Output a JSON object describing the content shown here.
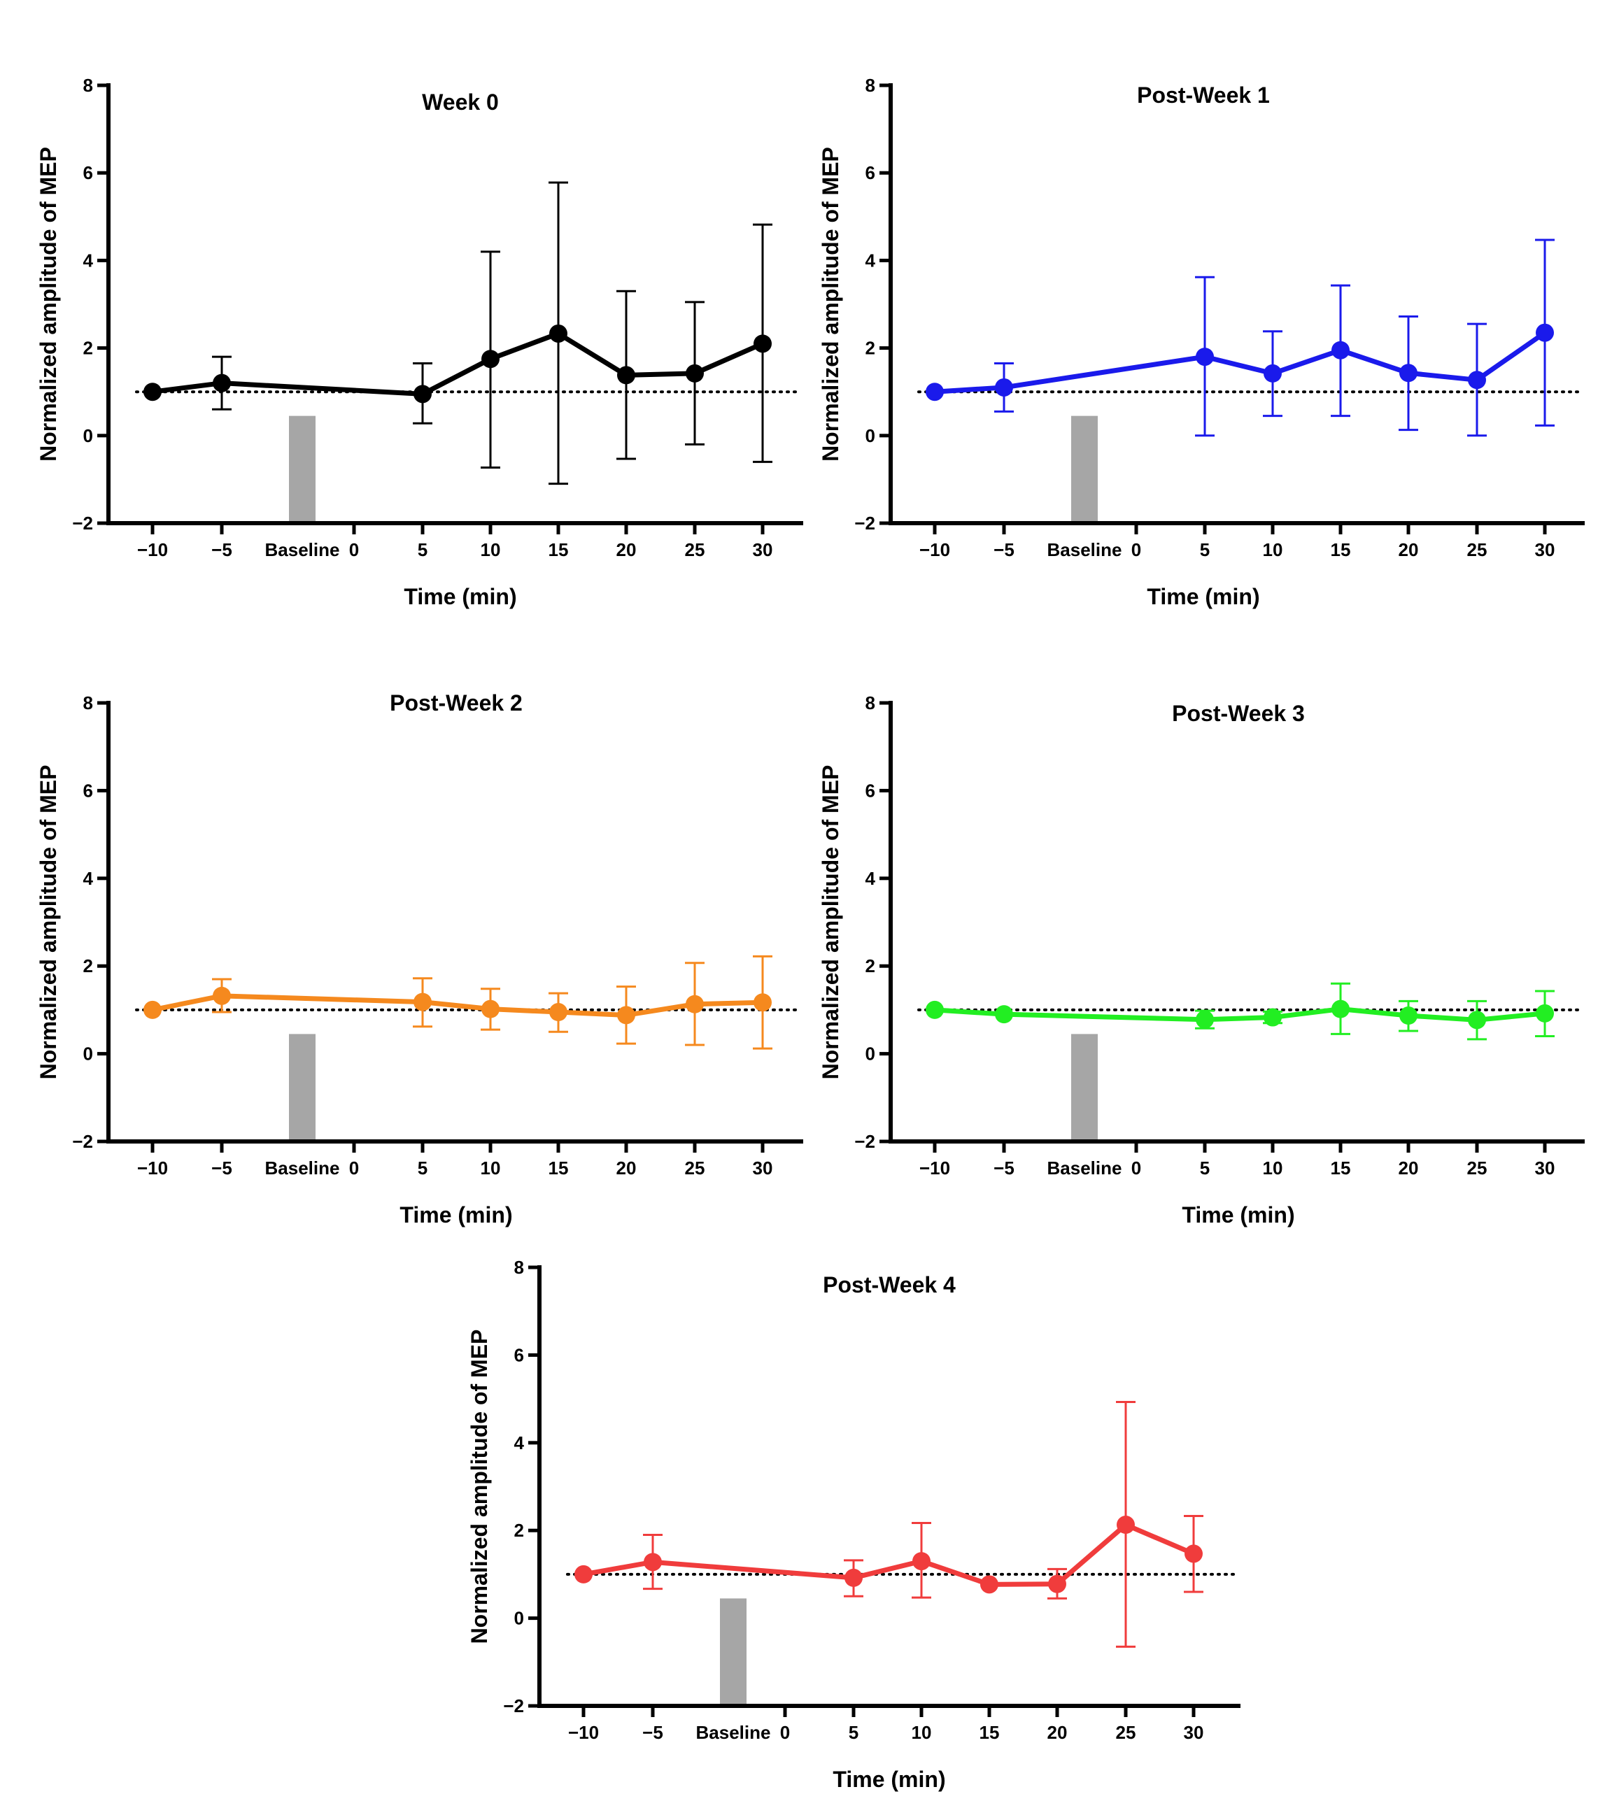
{
  "chart_data": [
    {
      "type": "line",
      "title": "Week 0",
      "xlabel": "Time (min)",
      "ylabel": "Normalized amplitude of  MEP",
      "ylim": [
        -2,
        8
      ],
      "yticks": [
        "−2",
        "0",
        "2",
        "4",
        "6",
        "8"
      ],
      "x_categories": [
        "−10",
        "−5",
        "Baseline",
        "0",
        "5",
        "10",
        "15",
        "20",
        "25",
        "30"
      ],
      "color": "#000000",
      "reference_y": 1,
      "baseline_bar_top": 0.45,
      "series": [
        {
          "name": "Week 0",
          "x": [
            -10,
            -5,
            5,
            10,
            15,
            20,
            25,
            30
          ],
          "y": [
            1.0,
            1.2,
            0.95,
            1.75,
            2.33,
            1.38,
            1.42,
            2.1
          ],
          "err_low": [
            1.0,
            0.6,
            0.28,
            -0.73,
            -1.1,
            -0.53,
            -0.2,
            -0.6
          ],
          "err_high": [
            1.0,
            1.8,
            1.65,
            4.2,
            5.78,
            3.3,
            3.05,
            4.82
          ]
        }
      ]
    },
    {
      "type": "line",
      "title": "Post-Week 1",
      "xlabel": "Time (min)",
      "ylabel": "Normalized amplitude of  MEP",
      "ylim": [
        -2,
        8
      ],
      "yticks": [
        "−2",
        "0",
        "2",
        "4",
        "6",
        "8"
      ],
      "x_categories": [
        "−10",
        "−5",
        "Baseline",
        "0",
        "5",
        "10",
        "15",
        "20",
        "25",
        "30"
      ],
      "color": "#1a1aeb",
      "reference_y": 1,
      "baseline_bar_top": 0.45,
      "series": [
        {
          "name": "Post-Week 1",
          "x": [
            -10,
            -5,
            5,
            10,
            15,
            20,
            25,
            30
          ],
          "y": [
            1.0,
            1.1,
            1.8,
            1.42,
            1.95,
            1.43,
            1.27,
            2.35
          ],
          "err_low": [
            1.0,
            0.55,
            0.0,
            0.45,
            0.45,
            0.13,
            0.0,
            0.23
          ],
          "err_high": [
            1.0,
            1.65,
            3.62,
            2.38,
            3.43,
            2.72,
            2.55,
            4.47
          ]
        }
      ]
    },
    {
      "type": "line",
      "title": "Post-Week 2",
      "xlabel": "Time (min)",
      "ylabel": "Normalized amplitude of  MEP",
      "ylim": [
        -2,
        8
      ],
      "yticks": [
        "−2",
        "0",
        "2",
        "4",
        "6",
        "8"
      ],
      "x_categories": [
        "−10",
        "−5",
        "Baseline",
        "0",
        "5",
        "10",
        "15",
        "20",
        "25",
        "30"
      ],
      "color": "#f5891e",
      "reference_y": 1,
      "baseline_bar_top": 0.45,
      "series": [
        {
          "name": "Post-Week 2",
          "x": [
            -10,
            -5,
            5,
            10,
            15,
            20,
            25,
            30
          ],
          "y": [
            1.0,
            1.32,
            1.18,
            1.02,
            0.95,
            0.88,
            1.13,
            1.17
          ],
          "err_low": [
            1.0,
            0.95,
            0.62,
            0.55,
            0.5,
            0.23,
            0.2,
            0.12
          ],
          "err_high": [
            1.0,
            1.7,
            1.72,
            1.48,
            1.38,
            1.53,
            2.07,
            2.22
          ]
        }
      ]
    },
    {
      "type": "line",
      "title": "Post-Week 3",
      "xlabel": "Time (min)",
      "ylabel": "Normalized amplitude of  MEP",
      "ylim": [
        -2,
        8
      ],
      "yticks": [
        "−2",
        "0",
        "2",
        "4",
        "6",
        "8"
      ],
      "x_categories": [
        "−10",
        "−5",
        "Baseline",
        "0",
        "5",
        "10",
        "15",
        "20",
        "25",
        "30"
      ],
      "color": "#22ee22",
      "reference_y": 1,
      "baseline_bar_top": 0.45,
      "series": [
        {
          "name": "Post-Week 3",
          "x": [
            -10,
            -5,
            5,
            10,
            15,
            20,
            25,
            30
          ],
          "y": [
            1.0,
            0.9,
            0.78,
            0.83,
            1.02,
            0.87,
            0.77,
            0.92
          ],
          "err_low": [
            1.0,
            0.9,
            0.58,
            0.7,
            0.45,
            0.52,
            0.33,
            0.4
          ],
          "err_high": [
            1.0,
            0.9,
            0.98,
            0.96,
            1.6,
            1.2,
            1.2,
            1.43
          ]
        }
      ]
    },
    {
      "type": "line",
      "title": "Post-Week 4",
      "xlabel": "Time (min)",
      "ylabel": "Normalized amplitude of  MEP",
      "ylim": [
        -2,
        8
      ],
      "yticks": [
        "−2",
        "0",
        "2",
        "4",
        "6",
        "8"
      ],
      "x_categories": [
        "−10",
        "−5",
        "Baseline",
        "0",
        "5",
        "10",
        "15",
        "20",
        "25",
        "30"
      ],
      "color": "#f03c3c",
      "reference_y": 1,
      "baseline_bar_top": 0.45,
      "series": [
        {
          "name": "Post-Week 4",
          "x": [
            -10,
            -5,
            5,
            10,
            15,
            20,
            25,
            30
          ],
          "y": [
            1.0,
            1.28,
            0.92,
            1.3,
            0.77,
            0.78,
            2.13,
            1.47
          ],
          "err_low": [
            1.0,
            0.67,
            0.5,
            0.47,
            0.77,
            0.45,
            -0.65,
            0.6
          ],
          "err_high": [
            1.0,
            1.9,
            1.32,
            2.17,
            0.77,
            1.12,
            4.93,
            2.33
          ]
        }
      ]
    }
  ]
}
